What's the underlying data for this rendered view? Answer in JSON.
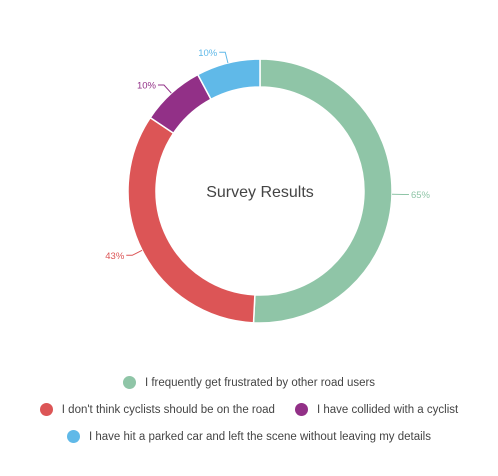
{
  "chart_data": {
    "type": "pie",
    "donut": true,
    "center_text": "Survey Results",
    "legend_position": "bottom",
    "slices": [
      {
        "label": "I frequently get frustrated by other road users",
        "value": 65,
        "value_label": "65%",
        "color": "#8fc5a7"
      },
      {
        "label": "I don't think cyclists should be on the road",
        "value": 43,
        "value_label": "43%",
        "color": "#dc5556"
      },
      {
        "label": "I have collided with a cyclist",
        "value": 10,
        "value_label": "10%",
        "color": "#923087"
      },
      {
        "label": "I have hit a parked car and left the scene without leaving my details",
        "value": 10,
        "value_label": "10%",
        "color": "#60b9e8"
      }
    ]
  }
}
